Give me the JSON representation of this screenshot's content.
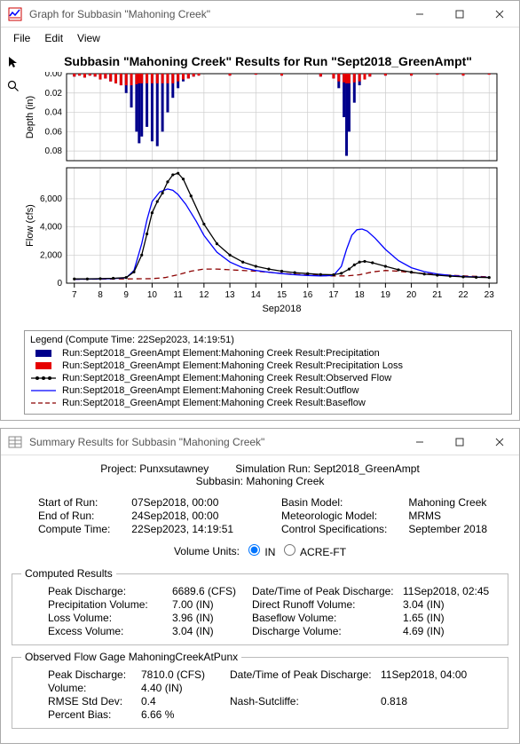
{
  "window1": {
    "title": "Graph for Subbasin \"Mahoning Creek\"",
    "menu": [
      "File",
      "Edit",
      "View"
    ]
  },
  "window2": {
    "title": "Summary Results for Subbasin \"Mahoning Creek\""
  },
  "chart": {
    "title": "Subbasin \"Mahoning Creek\" Results for Run \"Sept2018_GreenAmpt\"",
    "depth": {
      "ylabel": "Depth (in)",
      "yticks": [
        0.0,
        0.02,
        0.04,
        0.06,
        0.08
      ],
      "ylim": [
        0.0,
        0.09
      ],
      "precip_blue": [
        [
          7.0,
          0.003
        ],
        [
          7.2,
          0.002
        ],
        [
          7.4,
          0.004
        ],
        [
          7.6,
          0.002
        ],
        [
          7.8,
          0.003
        ],
        [
          8.0,
          0.006
        ],
        [
          8.2,
          0.005
        ],
        [
          8.4,
          0.008
        ],
        [
          8.6,
          0.01
        ],
        [
          8.8,
          0.012
        ],
        [
          9.0,
          0.02
        ],
        [
          9.2,
          0.035
        ],
        [
          9.4,
          0.06
        ],
        [
          9.5,
          0.072
        ],
        [
          9.6,
          0.065
        ],
        [
          9.8,
          0.055
        ],
        [
          10.0,
          0.07
        ],
        [
          10.2,
          0.075
        ],
        [
          10.4,
          0.06
        ],
        [
          10.6,
          0.04
        ],
        [
          10.8,
          0.025
        ],
        [
          11.0,
          0.015
        ],
        [
          11.2,
          0.008
        ],
        [
          11.4,
          0.005
        ],
        [
          11.6,
          0.003
        ],
        [
          11.8,
          0.002
        ],
        [
          13.0,
          0.002
        ],
        [
          14.0,
          0.001
        ],
        [
          15.0,
          0.002
        ],
        [
          16.5,
          0.003
        ],
        [
          17.0,
          0.005
        ],
        [
          17.2,
          0.015
        ],
        [
          17.4,
          0.045
        ],
        [
          17.5,
          0.085
        ],
        [
          17.6,
          0.06
        ],
        [
          17.8,
          0.03
        ],
        [
          18.0,
          0.012
        ],
        [
          18.2,
          0.006
        ],
        [
          18.4,
          0.003
        ],
        [
          19.0,
          0.002
        ],
        [
          20.0,
          0.002
        ],
        [
          21.0,
          0.001
        ],
        [
          22.0,
          0.002
        ],
        [
          23.0,
          0.001
        ]
      ],
      "loss_red": [
        [
          7.0,
          0.003
        ],
        [
          7.2,
          0.002
        ],
        [
          7.4,
          0.004
        ],
        [
          7.6,
          0.002
        ],
        [
          7.8,
          0.003
        ],
        [
          8.0,
          0.006
        ],
        [
          8.2,
          0.005
        ],
        [
          8.4,
          0.008
        ],
        [
          8.6,
          0.01
        ],
        [
          8.8,
          0.012
        ],
        [
          9.0,
          0.012
        ],
        [
          9.2,
          0.012
        ],
        [
          9.4,
          0.011
        ],
        [
          9.5,
          0.01
        ],
        [
          9.6,
          0.01
        ],
        [
          9.8,
          0.01
        ],
        [
          10.0,
          0.01
        ],
        [
          10.2,
          0.01
        ],
        [
          10.4,
          0.01
        ],
        [
          10.6,
          0.01
        ],
        [
          10.8,
          0.01
        ],
        [
          11.0,
          0.008
        ],
        [
          11.2,
          0.006
        ],
        [
          11.4,
          0.005
        ],
        [
          11.6,
          0.003
        ],
        [
          11.8,
          0.002
        ],
        [
          13.0,
          0.002
        ],
        [
          14.0,
          0.001
        ],
        [
          15.0,
          0.002
        ],
        [
          16.5,
          0.003
        ],
        [
          17.0,
          0.005
        ],
        [
          17.2,
          0.008
        ],
        [
          17.4,
          0.009
        ],
        [
          17.5,
          0.01
        ],
        [
          17.6,
          0.01
        ],
        [
          17.8,
          0.009
        ],
        [
          18.0,
          0.008
        ],
        [
          18.2,
          0.006
        ],
        [
          18.4,
          0.003
        ],
        [
          19.0,
          0.002
        ],
        [
          20.0,
          0.002
        ],
        [
          21.0,
          0.001
        ],
        [
          22.0,
          0.002
        ],
        [
          23.0,
          0.001
        ]
      ]
    },
    "flow": {
      "ylabel": "Flow (cfs)",
      "yticks": [
        0,
        2000,
        4000,
        6000
      ],
      "ylim": [
        0,
        8200
      ],
      "observed": [
        [
          7.0,
          300
        ],
        [
          7.5,
          300
        ],
        [
          8.0,
          320
        ],
        [
          8.5,
          350
        ],
        [
          9.0,
          400
        ],
        [
          9.3,
          800
        ],
        [
          9.6,
          2000
        ],
        [
          9.8,
          3500
        ],
        [
          10.0,
          5000
        ],
        [
          10.2,
          5800
        ],
        [
          10.4,
          6400
        ],
        [
          10.6,
          7200
        ],
        [
          10.8,
          7700
        ],
        [
          11.0,
          7810
        ],
        [
          11.2,
          7400
        ],
        [
          11.5,
          6200
        ],
        [
          12.0,
          4200
        ],
        [
          12.5,
          2800
        ],
        [
          13.0,
          2000
        ],
        [
          13.5,
          1500
        ],
        [
          14.0,
          1200
        ],
        [
          14.5,
          1000
        ],
        [
          15.0,
          850
        ],
        [
          15.5,
          750
        ],
        [
          16.0,
          680
        ],
        [
          16.5,
          620
        ],
        [
          17.0,
          600
        ],
        [
          17.3,
          700
        ],
        [
          17.6,
          1000
        ],
        [
          17.8,
          1300
        ],
        [
          18.0,
          1500
        ],
        [
          18.2,
          1550
        ],
        [
          18.5,
          1450
        ],
        [
          19.0,
          1200
        ],
        [
          19.5,
          950
        ],
        [
          20.0,
          780
        ],
        [
          20.5,
          650
        ],
        [
          21.0,
          570
        ],
        [
          21.5,
          500
        ],
        [
          22.0,
          450
        ],
        [
          22.5,
          420
        ],
        [
          23.0,
          400
        ]
      ],
      "outflow": [
        [
          7.0,
          280
        ],
        [
          8.0,
          300
        ],
        [
          8.5,
          320
        ],
        [
          9.0,
          380
        ],
        [
          9.3,
          900
        ],
        [
          9.6,
          2800
        ],
        [
          9.8,
          4500
        ],
        [
          10.0,
          5800
        ],
        [
          10.3,
          6500
        ],
        [
          10.6,
          6690
        ],
        [
          10.8,
          6600
        ],
        [
          11.0,
          6300
        ],
        [
          11.3,
          5600
        ],
        [
          11.7,
          4400
        ],
        [
          12.0,
          3400
        ],
        [
          12.5,
          2200
        ],
        [
          13.0,
          1500
        ],
        [
          13.5,
          1100
        ],
        [
          14.0,
          900
        ],
        [
          14.5,
          780
        ],
        [
          15.0,
          680
        ],
        [
          15.5,
          600
        ],
        [
          16.0,
          550
        ],
        [
          16.5,
          520
        ],
        [
          17.0,
          550
        ],
        [
          17.3,
          1200
        ],
        [
          17.5,
          2400
        ],
        [
          17.7,
          3400
        ],
        [
          17.9,
          3800
        ],
        [
          18.1,
          3850
        ],
        [
          18.3,
          3700
        ],
        [
          18.6,
          3200
        ],
        [
          19.0,
          2400
        ],
        [
          19.5,
          1600
        ],
        [
          20.0,
          1100
        ],
        [
          20.5,
          820
        ],
        [
          21.0,
          650
        ],
        [
          21.5,
          550
        ],
        [
          22.0,
          480
        ],
        [
          22.5,
          440
        ],
        [
          23.0,
          410
        ]
      ],
      "baseflow": [
        [
          7.0,
          280
        ],
        [
          8.0,
          290
        ],
        [
          9.0,
          300
        ],
        [
          10.0,
          320
        ],
        [
          10.5,
          400
        ],
        [
          11.0,
          600
        ],
        [
          11.5,
          850
        ],
        [
          12.0,
          1000
        ],
        [
          12.5,
          1000
        ],
        [
          13.0,
          950
        ],
        [
          14.0,
          850
        ],
        [
          15.0,
          700
        ],
        [
          16.0,
          580
        ],
        [
          17.0,
          520
        ],
        [
          17.5,
          520
        ],
        [
          18.0,
          600
        ],
        [
          18.5,
          800
        ],
        [
          19.0,
          900
        ],
        [
          19.5,
          850
        ],
        [
          20.0,
          750
        ],
        [
          21.0,
          620
        ],
        [
          22.0,
          520
        ],
        [
          23.0,
          450
        ]
      ],
      "colors": {
        "observed": "#000000",
        "outflow": "#0000ff",
        "baseflow": "#8b0000",
        "precip": "#00008b",
        "loss": "#e60000",
        "grid": "#cccccc",
        "axis": "#000000"
      }
    },
    "xaxis": {
      "label": "Sep2018",
      "ticks": [
        7,
        8,
        9,
        10,
        11,
        12,
        13,
        14,
        15,
        16,
        17,
        18,
        19,
        20,
        21,
        22,
        23
      ],
      "lim": [
        6.7,
        23.3
      ]
    }
  },
  "legend": {
    "title": "Legend (Compute Time: 22Sep2023, 14:19:51)",
    "items": [
      {
        "label": "Run:Sept2018_GreenAmpt Element:Mahoning Creek Result:Precipitation",
        "style": "bar-blue"
      },
      {
        "label": "Run:Sept2018_GreenAmpt Element:Mahoning Creek Result:Precipitation Loss",
        "style": "bar-red"
      },
      {
        "label": "Run:Sept2018_GreenAmpt Element:Mahoning Creek Result:Observed Flow",
        "style": "line-black-dot"
      },
      {
        "label": "Run:Sept2018_GreenAmpt Element:Mahoning Creek Result:Outflow",
        "style": "line-blue"
      },
      {
        "label": "Run:Sept2018_GreenAmpt Element:Mahoning Creek Result:Baseflow",
        "style": "line-darkred-dash"
      }
    ]
  },
  "summary": {
    "project_lab": "Project:",
    "project": "Punxsutawney",
    "simrun_lab": "Simulation Run:",
    "simrun": "Sept2018_GreenAmpt",
    "subbasin_lab": "Subbasin:",
    "subbasin": "Mahoning Creek",
    "meta": {
      "start_lab": "Start of Run:",
      "start": "07Sep2018, 00:00",
      "end_lab": "End of Run:",
      "end": "24Sep2018, 00:00",
      "compute_lab": "Compute Time:",
      "compute": "22Sep2023, 14:19:51",
      "basin_lab": "Basin Model:",
      "basin": "Mahoning Creek",
      "met_lab": "Meteorologic Model:",
      "met": "MRMS",
      "ctrl_lab": "Control Specifications:",
      "ctrl": "September 2018"
    },
    "vol_units_lab": "Volume Units:",
    "vol_units": [
      "IN",
      "ACRE-FT"
    ],
    "vol_units_selected": "IN",
    "computed_title": "Computed Results",
    "computed": {
      "peak_lab": "Peak Discharge:",
      "peak": "6689.6 (CFS)",
      "pvol_lab": "Precipitation Volume:",
      "pvol": "7.00 (IN)",
      "loss_lab": "Loss Volume:",
      "loss": "3.96 (IN)",
      "exc_lab": "Excess Volume:",
      "exc": "3.04 (IN)",
      "dt_lab": "Date/Time of Peak Discharge:",
      "dt": "11Sep2018, 02:45",
      "drv_lab": "Direct Runoff Volume:",
      "drv": "3.04 (IN)",
      "bfv_lab": "Baseflow Volume:",
      "bfv": "1.65 (IN)",
      "dv_lab": "Discharge Volume:",
      "dv": "4.69 (IN)"
    },
    "observed_title": "Observed Flow Gage MahoningCreekAtPunx",
    "observed": {
      "peak_lab": "Peak Discharge:",
      "peak": "7810.0 (CFS)",
      "vol_lab": "Volume:",
      "vol": "4.40 (IN)",
      "rmse_lab": "RMSE Std Dev:",
      "rmse": "0.4",
      "pb_lab": "Percent Bias:",
      "pb": "6.66 %",
      "dt_lab": "Date/Time of Peak Discharge:",
      "dt": "11Sep2018, 04:00",
      "ns_lab": "Nash-Sutcliffe:",
      "ns": "0.818"
    }
  }
}
